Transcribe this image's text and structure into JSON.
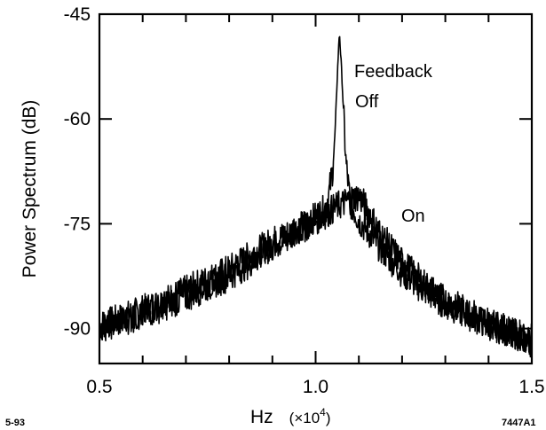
{
  "chart_data": {
    "type": "line",
    "title": "",
    "xlabel": "Hz",
    "xlabel_units": "(×10",
    "xlabel_exponent": "4",
    "xlabel_close": ")",
    "ylabel": "Power Spectrum  (dB)",
    "xlim": [
      0.5,
      1.5
    ],
    "ylim": [
      -95,
      -45
    ],
    "xticks": [
      0.5,
      1.0,
      1.5
    ],
    "xtick_labels": [
      "0.5",
      "1.0",
      "1.5"
    ],
    "yticks": [
      -45,
      -60,
      -75,
      -90
    ],
    "ytick_labels": [
      "-45",
      "-60",
      "-75",
      "-90"
    ],
    "grid": false,
    "series": [
      {
        "name": "Off",
        "x": [
          0.5,
          0.55,
          0.6,
          0.65,
          0.7,
          0.75,
          0.8,
          0.85,
          0.9,
          0.95,
          1.0,
          1.02,
          1.03,
          1.04,
          1.045,
          1.05,
          1.055,
          1.06,
          1.07,
          1.08,
          1.1,
          1.15,
          1.2,
          1.25,
          1.3,
          1.35,
          1.4,
          1.45,
          1.5
        ],
        "values": [
          -89.5,
          -88.5,
          -87.3,
          -86.0,
          -84.5,
          -83.0,
          -81.5,
          -79.5,
          -77.5,
          -76.0,
          -74.0,
          -73.0,
          -71.0,
          -67.0,
          -62.0,
          -54.0,
          -47.5,
          -53.0,
          -66.0,
          -72.0,
          -74.5,
          -78.5,
          -82.0,
          -84.5,
          -86.5,
          -88.0,
          -89.5,
          -90.5,
          -92.0
        ]
      },
      {
        "name": "On",
        "x": [
          0.5,
          0.55,
          0.6,
          0.65,
          0.7,
          0.75,
          0.8,
          0.85,
          0.9,
          0.95,
          1.0,
          1.05,
          1.08,
          1.1,
          1.12,
          1.15,
          1.2,
          1.25,
          1.3,
          1.35,
          1.4,
          1.45,
          1.5
        ],
        "values": [
          -89.8,
          -89.0,
          -88.0,
          -86.8,
          -85.5,
          -84.0,
          -82.5,
          -80.5,
          -78.5,
          -76.5,
          -74.5,
          -72.5,
          -71.5,
          -71.0,
          -73.0,
          -76.5,
          -80.5,
          -83.5,
          -86.0,
          -87.5,
          -89.0,
          -90.5,
          -91.5
        ]
      }
    ],
    "annotations": [
      "Feedback",
      "Off",
      "On"
    ],
    "footnote_left": "5-93",
    "footnote_right": "7447A1"
  }
}
